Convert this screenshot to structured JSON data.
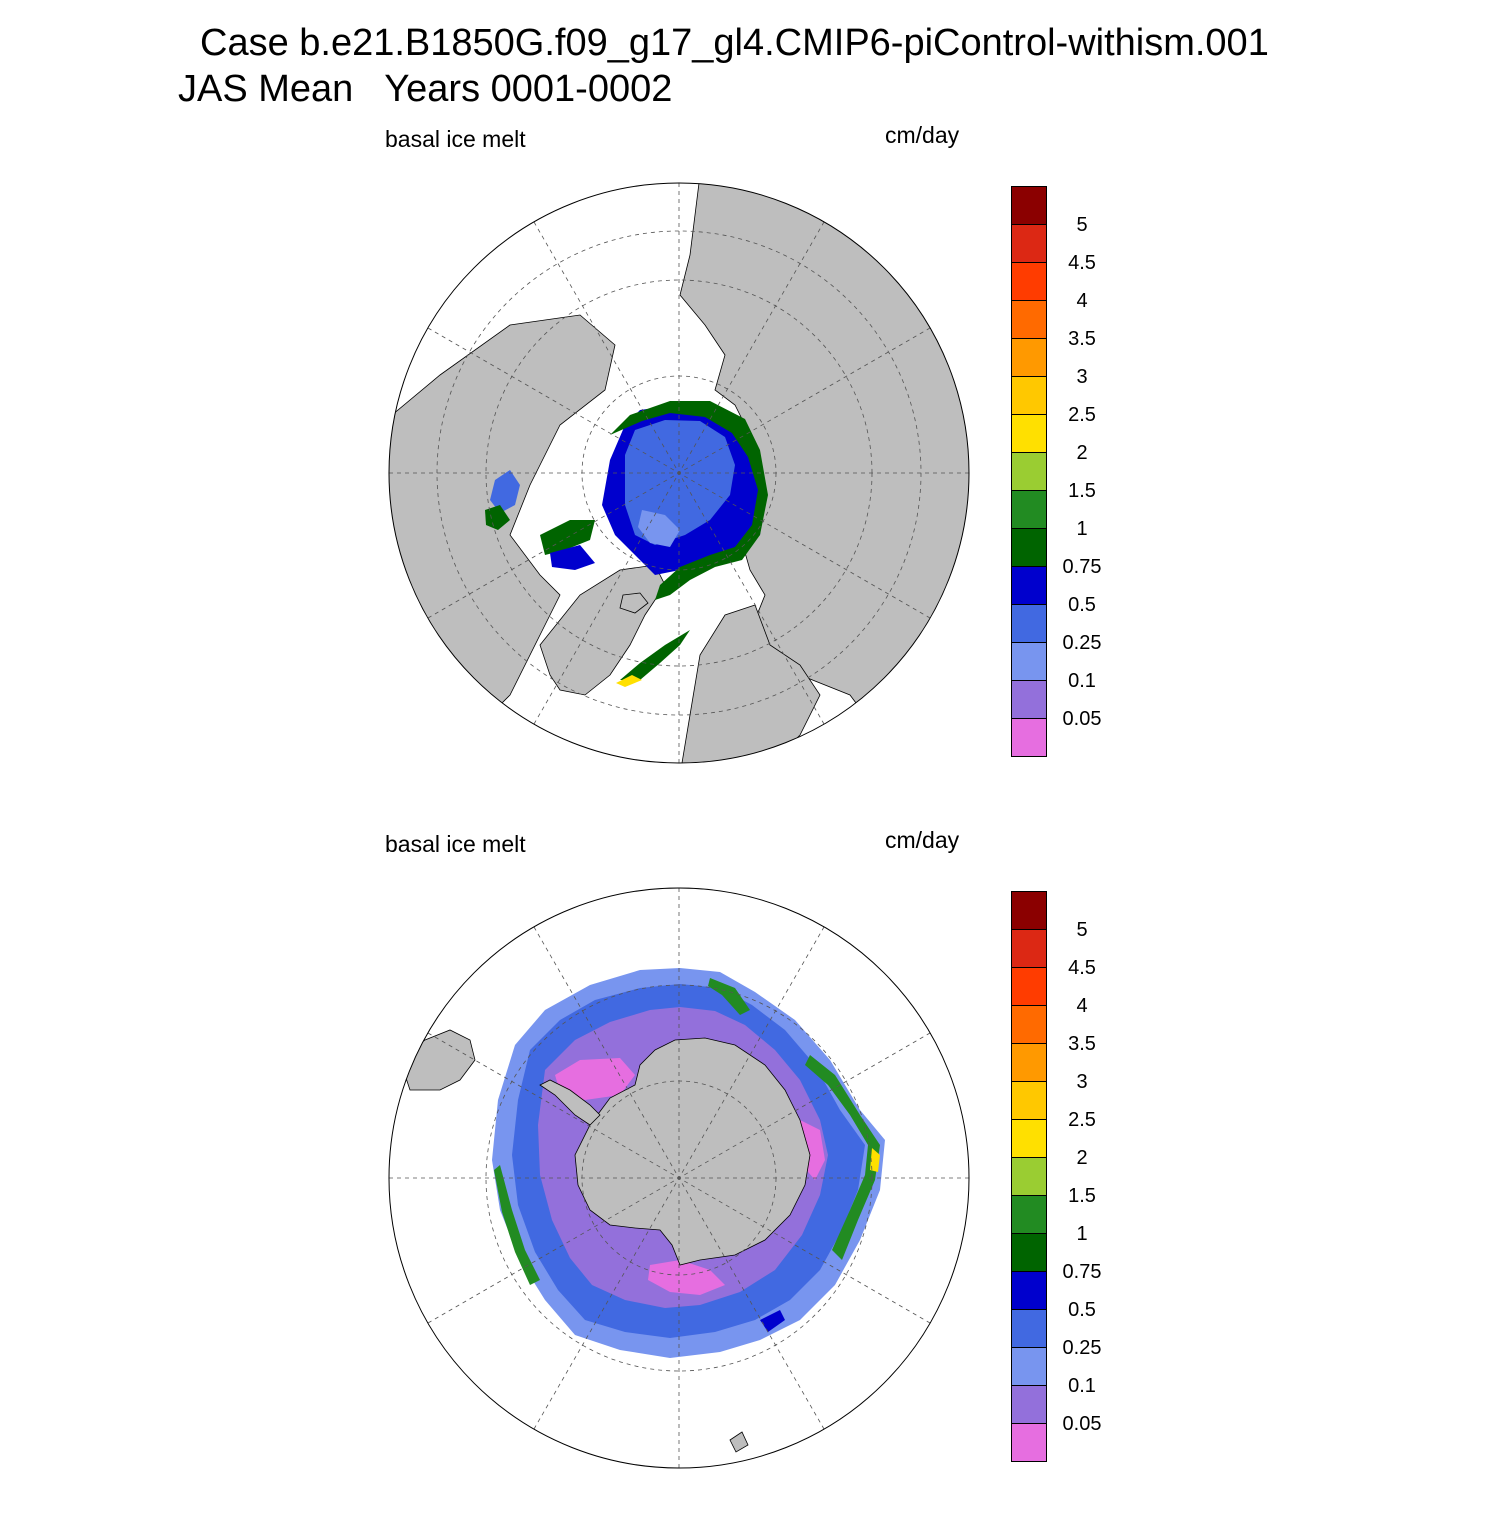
{
  "title_line1": "Case b.e21.B1850G.f09_g17_gl4.CMIP6-piControl-withism.001",
  "title_line2": "JAS Mean   Years 0001-0002",
  "colors": {
    "land": "#bebebe",
    "ocean": "#ffffff",
    "grid": "#555555"
  },
  "colorbar": {
    "colors": [
      "#e66ee0",
      "#9370db",
      "#7895ef",
      "#4169e1",
      "#0000cd",
      "#006400",
      "#228b22",
      "#9acd32",
      "#ffe000",
      "#ffc800",
      "#ff9900",
      "#ff6a00",
      "#ff3c00",
      "#dc2814",
      "#8b0000"
    ],
    "tick_labels": [
      "0.05",
      "0.1",
      "0.25",
      "0.5",
      "0.75",
      "1",
      "1.5",
      "2",
      "2.5",
      "3",
      "3.5",
      "4",
      "4.5",
      "5"
    ]
  },
  "panels": [
    {
      "id": "north",
      "hemisphere": "NH",
      "left_label": "basal ice melt",
      "right_label": "cm/day",
      "tick_labels": [
        "5",
        "4.5",
        "4",
        "3.5",
        "3",
        "2.5",
        "2",
        "1.5",
        "1",
        "0.75",
        "0.5",
        "0.25",
        "0.1",
        "0.05"
      ]
    },
    {
      "id": "south",
      "hemisphere": "SH",
      "left_label": "basal ice melt",
      "right_label": "cm/day",
      "tick_labels": [
        "5",
        "4.5",
        "4",
        "3.5",
        "3",
        "2.5",
        "2",
        "1.5",
        "1",
        "0.75",
        "0.5",
        "0.25",
        "0.1",
        "0.05"
      ]
    }
  ]
}
